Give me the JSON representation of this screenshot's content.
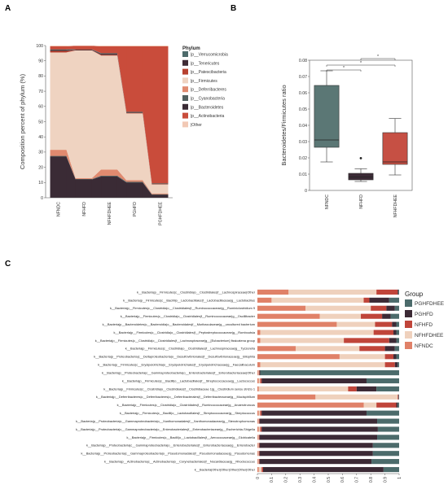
{
  "panels": {
    "a": "A",
    "b": "B",
    "c": "C"
  },
  "colors": {
    "Verrucomicrobia": "#4d6b6b",
    "Tenericutes": "#3f2c36",
    "Patescibacteria": "#b8412f",
    "Firmicutes": "#efd3c1",
    "Deferribacteres": "#e08a6f",
    "Cyanobacteria": "#526060",
    "Bacteroidetes": "#3a2b35",
    "Actinobacteria": "#c94c3b",
    "Other": "#f2c9b5",
    "PGHFDHEE": "#4c6b6b",
    "PGHFD": "#3c2a35",
    "NFHFD": "#c0453a",
    "NFHFDHEE": "#efd1bd",
    "NFNDC": "#e08168",
    "boxNFNDC": "#5b7775",
    "boxNFHFD": "#3c2b36",
    "boxNFHFDHEE": "#c65044"
  },
  "chart_data": [
    {
      "type": "area",
      "ylabel": "Composition percent of phylum (%)",
      "categories": [
        "NFNDC",
        "NFHFD",
        "NFHFDHEE",
        "PGHFD",
        "PGHFDHEE"
      ],
      "ylim": [
        0,
        100
      ],
      "yticks": [
        "0",
        "10",
        "20",
        "30",
        "40",
        "50",
        "60",
        "70",
        "80",
        "90",
        "100"
      ],
      "legend_title": "Phylum",
      "legend_position": "right",
      "series": [
        {
          "name": "p__Bacteroidetes",
          "key": "Bacteroidetes",
          "values": [
            27,
            12,
            14,
            10,
            2
          ]
        },
        {
          "name": "p__Cyanobacteria",
          "key": "Cyanobacteria",
          "values": [
            0.5,
            0.3,
            0.5,
            0.5,
            0.3
          ]
        },
        {
          "name": "p__Deferribacteres",
          "key": "Deferribacteres",
          "values": [
            4,
            0.5,
            4,
            1,
            0.5
          ]
        },
        {
          "name": "p__Firmicutes",
          "key": "Firmicutes",
          "values": [
            64,
            84,
            75,
            44,
            6
          ]
        },
        {
          "name": "p__Patescibacteria",
          "key": "Patescibacteria",
          "values": [
            1,
            0.2,
            0.5,
            0.3,
            0.2
          ]
        },
        {
          "name": "p__Tenericutes",
          "key": "Tenericutes",
          "values": [
            0.5,
            0.3,
            0.5,
            0.2,
            0.2
          ]
        },
        {
          "name": "p__Verrucomicrobia",
          "key": "Verrucomicrobia",
          "values": [
            0.5,
            0.2,
            0.5,
            0.5,
            0.3
          ]
        },
        {
          "name": "p__Actinobacteria",
          "key": "Actinobacteria",
          "values": [
            2,
            2.3,
            4.5,
            43,
            90
          ]
        },
        {
          "name": "Other",
          "key": "Other",
          "values": [
            0.5,
            0.2,
            0.5,
            0.5,
            0.5
          ]
        }
      ],
      "legend_order": [
        "p__Verrucomicrobia",
        "p__Tenericutes",
        "p__Patescibacteria",
        "p__Firmicutes",
        "p__Deferribacteres",
        "p__Cyanobacteria",
        "p__Bacteroidetes",
        "p__Actinobacteria",
        "Other"
      ]
    },
    {
      "type": "box",
      "ylabel": "Bacteroidetes/Firmicutes ratio",
      "categories": [
        "NFNDC",
        "NFHFD",
        "NFHFDHEE"
      ],
      "ylim": [
        0,
        0.08
      ],
      "yticks": [
        "0",
        "0.01",
        "0.02",
        "0.03",
        "0.04",
        "0.05",
        "0.06",
        "0.07",
        "0.08"
      ],
      "boxes": [
        {
          "name": "NFNDC",
          "min": 0.0175,
          "q1": 0.0265,
          "median": 0.031,
          "q3": 0.0645,
          "max": 0.0735,
          "outliers": []
        },
        {
          "name": "NFHFD",
          "min": 0.0055,
          "q1": 0.0065,
          "median": 0.0083,
          "q3": 0.0105,
          "max": 0.0133,
          "outliers": [
            0.0198
          ]
        },
        {
          "name": "NFHFDHEE",
          "min": 0.0095,
          "q1": 0.016,
          "median": 0.0175,
          "q3": 0.0355,
          "max": 0.0442,
          "outliers": []
        }
      ],
      "significance": [
        {
          "from": 0,
          "to": 1,
          "label": "*"
        },
        {
          "from": 0,
          "to": 2,
          "label": "*"
        },
        {
          "from": 1,
          "to": 2,
          "label": "*"
        }
      ]
    },
    {
      "type": "bar",
      "orientation": "horizontal",
      "stacked": true,
      "legend_title": "Group",
      "legend_position": "right",
      "xlim": [
        0,
        1
      ],
      "xticks": [
        "0",
        "0.1",
        "0.2",
        "0.3",
        "0.4",
        "0.5",
        "0.6",
        "0.7",
        "0.8",
        "0.9",
        "1"
      ],
      "groups": [
        "PGHFDHEE",
        "PGHFD",
        "NFHFD",
        "NFHFDHEE",
        "NFNDC"
      ],
      "stack_order": [
        "NFNDC",
        "NFHFDHEE",
        "NFHFD",
        "PGHFD",
        "PGHFDHEE"
      ],
      "rows": [
        {
          "label": "k__Bacteria|p__Firmicutes|c__Clostridia|o__Clostridiales|f__Lachnospiraceae|Other",
          "values": [
            0.22,
            0.62,
            0.15,
            0.005,
            0.005
          ]
        },
        {
          "label": "k__Bacteria|p__Firmicutes|c__Bacilli|o__Lactobacillales|f__Lactobacillaceae|g__Lactobacillus",
          "values": [
            0.1,
            0.65,
            0.04,
            0.14,
            0.07
          ]
        },
        {
          "label": "k__Bacteria|p__Firmicutes|c__Clostridia|o__Clostridiales|f__Ruminococcaceae|g__Ruminiclostridium 9",
          "values": [
            0.34,
            0.46,
            0.11,
            0.06,
            0.03
          ]
        },
        {
          "label": "k__Bacteria|p__Firmicutes|c__Clostridia|o__Clostridiales|f__Ruminococcaceae|g__Oscillibacter",
          "values": [
            0.44,
            0.29,
            0.15,
            0.06,
            0.06
          ]
        },
        {
          "label": "k__Bacteria|p__Bacteroidetes|c__Bacteroidia|o__Bacteroidales|f__Muribaculaceae|g__uncultured bacterium",
          "values": [
            0.56,
            0.27,
            0.12,
            0.03,
            0.02
          ]
        },
        {
          "label": "k__Bacteria|p__Firmicutes|c__Clostridia|o__Clostridiales|f__Peptostreptococcaceae|g__Romboutsia",
          "values": [
            0.02,
            0.8,
            0.14,
            0.02,
            0.02
          ]
        },
        {
          "label": "k__Bacteria|p__Firmicutes|c__Clostridia|o__Clostridiales|f__Lachnospiraceae|g__[Eubacterium] fissicatena group",
          "values": [
            0.02,
            0.59,
            0.32,
            0.05,
            0.02
          ]
        },
        {
          "label": "k__Bacteria|p__Firmicutes|c__Clostridia|o__Clostridiales|f__Lachnospiraceae|g__Tyzzerella",
          "values": [
            0.27,
            0.45,
            0.18,
            0.07,
            0.03
          ]
        },
        {
          "label": "k__Bacteria|p__Proteobacteria|c__Deltaproteobacteria|o__Desulfovibrionales|f__Desulfovibrionaceae|g__Bilophila",
          "values": [
            0.58,
            0.32,
            0.06,
            0.02,
            0.02
          ]
        },
        {
          "label": "k__Bacteria|p__Firmicutes|c__Erysipelotrichia|o__Erysipelotrichales|f__Erysipelotrichaceae|g__Faecalibaculum",
          "values": [
            0.02,
            0.88,
            0.07,
            0.02,
            0.01
          ]
        },
        {
          "label": "k__Bacteria|p__Proteobacteria|c__Gammaproteobacteria|o__Enterobacteriales|f__Enterobacteriaceae|Other",
          "values": [
            0.005,
            0.005,
            0.005,
            0.005,
            0.98
          ]
        },
        {
          "label": "k__Bacteria|p__Firmicutes|c__Bacilli|o__Lactobacillales|f__Streptococcaceae|g__Lactococcus",
          "values": [
            0.01,
            0.01,
            0.01,
            0.74,
            0.23
          ]
        },
        {
          "label": "k__Bacteria|p__Firmicutes|c__Clostridia|o__Clostridiales|f__Clostridiaceae 1|g__Clostridium sensu stricto 1",
          "values": [
            0.01,
            0.63,
            0.06,
            0.14,
            0.16
          ]
        },
        {
          "label": "k__Bacteria|p__Deferribacteres|c__Deferribacteres|o__Deferribacterales|f__Deferribacteraceae|g__Mucispirillum",
          "values": [
            0.41,
            0.58,
            0.005,
            0.003,
            0.002
          ]
        },
        {
          "label": "k__Bacteria|p__Firmicutes|c__Clostridia|o__Clostridiales|f__Ruminococcaceae|g__Anaerotruncus",
          "values": [
            0.75,
            0.09,
            0.14,
            0.01,
            0.01
          ]
        },
        {
          "label": "k__Bacteria|p__Firmicutes|c__Bacilli|o__Lactobacillales|f__Streptococcaceae|g__Streptococcus",
          "values": [
            0.01,
            0.01,
            0.01,
            0.74,
            0.23
          ]
        },
        {
          "label": "k__Bacteria|p__Proteobacteria|c__Gammaproteobacteria|o__Xanthomonadales|f__Xanthomonadaceae|g__Stenotrophomonas",
          "values": [
            0.005,
            0.005,
            0.005,
            0.83,
            0.155
          ]
        },
        {
          "label": "k__Bacteria|p__Proteobacteria|c__Gammaproteobacteria|o__Enterobacteriales|f__Enterobacteriaceae|g__Escherichia-Shigella",
          "values": [
            0.01,
            0.01,
            0.01,
            0.82,
            0.15
          ]
        },
        {
          "label": "k__Bacteria|p__Firmicutes|c__Bacilli|o__Lactobacillales|f__Aerococcaceae|g__Globicatella",
          "values": [
            0.005,
            0.005,
            0.005,
            0.83,
            0.155
          ]
        },
        {
          "label": "k__Bacteria|p__Proteobacteria|c__Gammaproteobacteria|o__Enterobacteriales|f__Enterobacteriaceae|g__Enterobacter",
          "values": [
            0.005,
            0.005,
            0.005,
            0.8,
            0.185
          ]
        },
        {
          "label": "k__Bacteria|p__Proteobacteria|c__Gammaproteobacteria|o__Pseudomonadales|f__Pseudomonadaceae|g__Pseudomonas",
          "values": [
            0.005,
            0.005,
            0.005,
            0.8,
            0.185
          ]
        },
        {
          "label": "k__Bacteria|p__Actinobacteria|c__Actinobacteria|o__Corynebacteriales|f__Nocardiaceae|g__Rhodococcus",
          "values": [
            0.005,
            0.005,
            0.005,
            0.79,
            0.195
          ]
        },
        {
          "label": "k__Bacteria|Other|Other|Other|Other|Other",
          "values": [
            0.01,
            0.02,
            0.01,
            0.85,
            0.11
          ]
        }
      ]
    }
  ]
}
